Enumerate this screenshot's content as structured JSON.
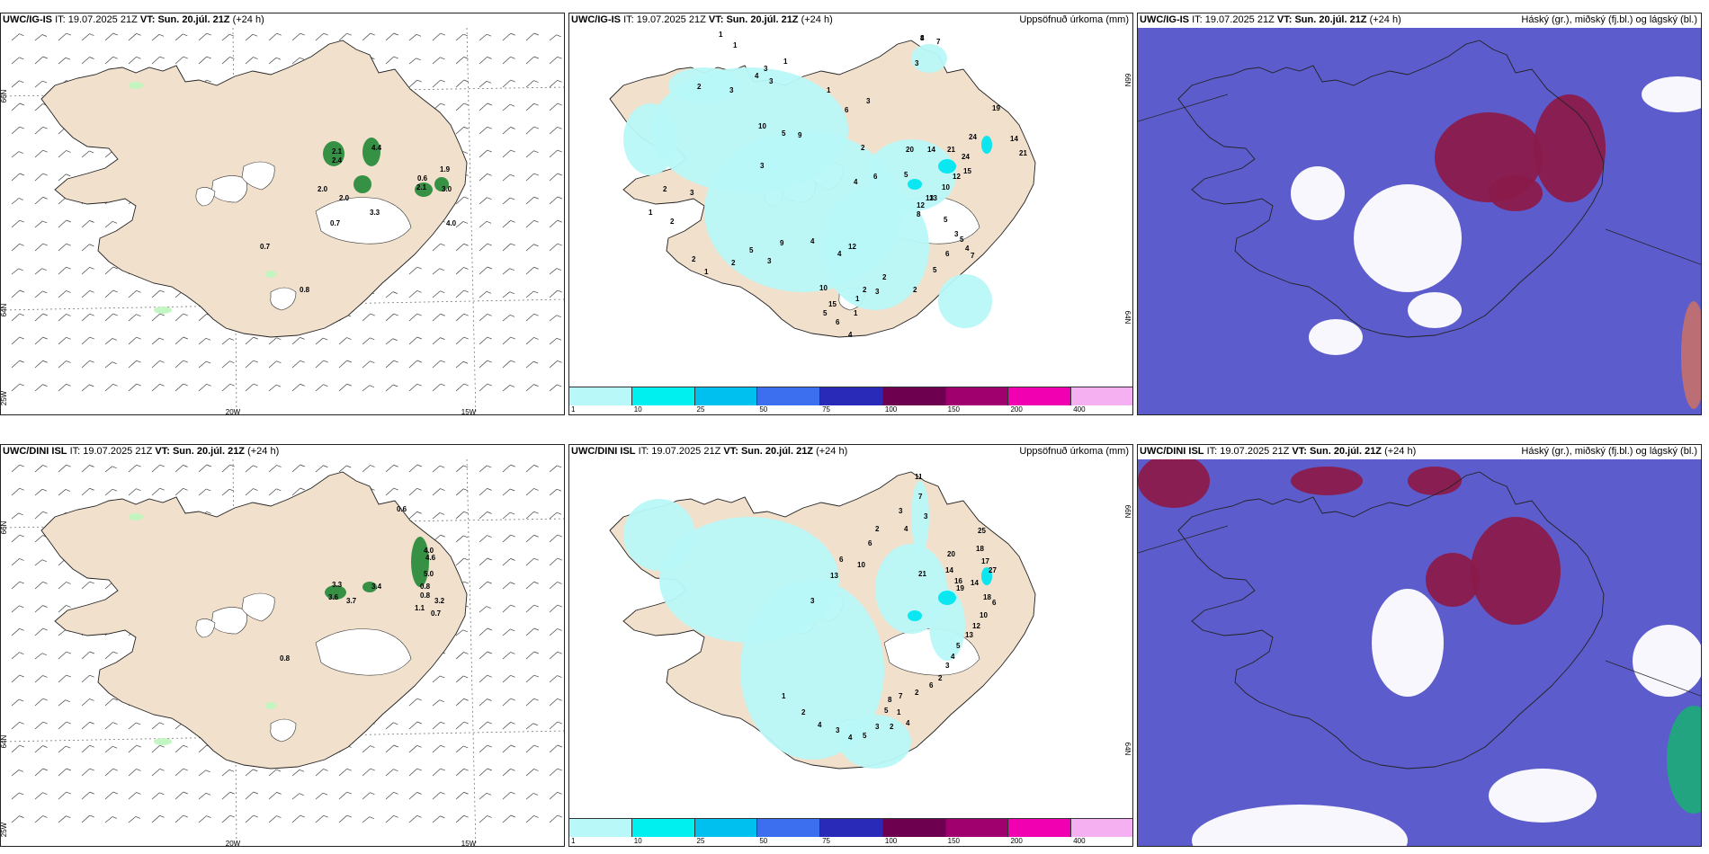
{
  "rows": [
    {
      "model": "UWC/IG-IS",
      "it_label": "IT:",
      "it_value": "19.07.2025 21Z",
      "vt_label": "VT:",
      "vt_value": "Sun. 20.júl. 21Z",
      "lead": "(+24 h)"
    },
    {
      "model": "UWC/DINI ISL",
      "it_label": "IT:",
      "it_value": "19.07.2025 21Z",
      "vt_label": "VT:",
      "vt_value": "Sun. 20.júl. 21Z",
      "lead": "(+24 h)"
    }
  ],
  "precip_title": "Uppsöfnuð úrkoma (mm)",
  "cloud_title": "Háský (gr.), miðský (fj.bl.) og lágský (bl.)",
  "axis_labels": {
    "lon_20w": "20W",
    "lon_15w": "15W",
    "lat_66n": "66N",
    "lat_64n": "64N",
    "lat_25w": "25W"
  },
  "colorbar": {
    "ticks": [
      "1",
      "10",
      "25",
      "50",
      "75",
      "100",
      "150",
      "200",
      "400"
    ],
    "colors": [
      "#b8f8f8",
      "#00f0f0",
      "#00c0f0",
      "#3c6ef0",
      "#2a2ab8",
      "#6e0050",
      "#a0006e",
      "#f000b0",
      "#f4b0f0"
    ]
  },
  "colors": {
    "land": "#f0e0cc",
    "cloud_bg": "#5c5ccc",
    "high_cloud": "#8a1a4a",
    "precip": "#b8f8f8"
  },
  "wind_values": {
    "top": [
      "2.1",
      "2.4",
      "4.4",
      "0.6",
      "1.9",
      "2.0",
      "2.0",
      "2.1",
      "3.0",
      "0.7",
      "3.3",
      "4.0",
      "0.7",
      "0.8"
    ],
    "bottom": [
      "0.6",
      "4.0",
      "4.6",
      "5.0",
      "3.3",
      "3.6",
      "3.7",
      "3.4",
      "0.8",
      "0.8",
      "3.2",
      "1.1",
      "0.7",
      "0.8"
    ]
  },
  "precip_values": {
    "top": [
      "8",
      "7",
      "3",
      "1",
      "1",
      "3",
      "1",
      "4",
      "3",
      "2",
      "3",
      "1",
      "10",
      "3",
      "5",
      "9",
      "6",
      "3",
      "2",
      "4",
      "5",
      "6",
      "20",
      "14",
      "21",
      "24",
      "15",
      "19",
      "14",
      "21",
      "24",
      "12",
      "10",
      "13",
      "12",
      "13",
      "8",
      "5",
      "3",
      "5",
      "4",
      "7",
      "6",
      "5",
      "2",
      "3",
      "2",
      "2",
      "1",
      "1",
      "4",
      "6",
      "5",
      "15",
      "10",
      "12",
      "4",
      "4",
      "9",
      "3",
      "5",
      "2",
      "1",
      "2",
      "2",
      "1",
      "2",
      "3",
      "4"
    ],
    "bottom": [
      "11",
      "7",
      "3",
      "3",
      "4",
      "2",
      "6",
      "10",
      "6",
      "3",
      "13",
      "21",
      "14",
      "16",
      "20",
      "18",
      "25",
      "17",
      "27",
      "14",
      "19",
      "18",
      "6",
      "10",
      "12",
      "13",
      "5",
      "4",
      "3",
      "2",
      "6",
      "2",
      "7",
      "8",
      "5",
      "1",
      "4",
      "2",
      "3",
      "5",
      "4",
      "3",
      "4",
      "2",
      "1"
    ]
  }
}
